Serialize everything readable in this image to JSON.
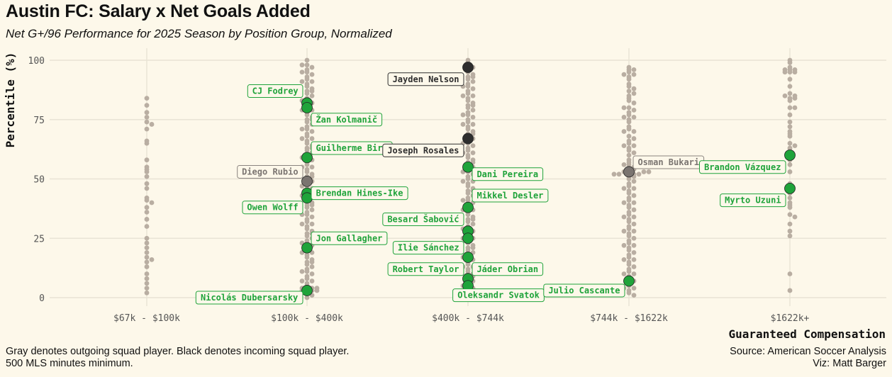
{
  "title": "Austin FC: Salary x Net Goals Added",
  "subtitle": "Net G+/96 Performance for 2025 Season by Position Group, Normalized",
  "footer": {
    "note1": "Gray denotes outgoing squad player. Black denotes incoming squad player.",
    "note2": "500 MLS minutes minimum.",
    "source": "Source: American Soccer Analysis",
    "viz": "Viz: Matt Barger"
  },
  "colors": {
    "background": "#fdf8ea",
    "league": "#b9aea2",
    "current": "#1fa33a",
    "outgoing": "#7a7470",
    "incoming": "#2e2e2e",
    "grid": "#e9e3d5"
  },
  "chart_data": {
    "type": "scatter",
    "title": "Austin FC: Salary x Net Goals Added",
    "subtitle": "Net G+/96 Performance for 2025 Season by Position Group, Normalized",
    "xlabel": "Guaranteed Compensation",
    "ylabel": "Percentile (%)",
    "categories": [
      "$67k - $100k",
      "$100k - $400k",
      "$400k - $744k",
      "$744k - $1622k",
      "$1622k+"
    ],
    "ylim": [
      -3,
      103
    ],
    "yticks": [
      0,
      25,
      50,
      75,
      100
    ],
    "grid": true,
    "background_points": [
      {
        "category": "$67k - $100k",
        "values": [
          84,
          81,
          78,
          76,
          74,
          73,
          71,
          66,
          65,
          58,
          55,
          54,
          53,
          51,
          48,
          46,
          42,
          41,
          40,
          38,
          36,
          33,
          30,
          25,
          23,
          21,
          19,
          17,
          16,
          15,
          13,
          10,
          8,
          6,
          4,
          2
        ]
      },
      {
        "category": "$100k - $400k",
        "values": [
          100,
          98,
          97,
          96,
          95,
          94,
          93,
          92,
          91,
          90,
          89,
          88,
          87,
          86,
          85,
          84,
          83,
          82,
          81,
          80,
          79,
          78,
          77,
          76,
          75,
          74,
          73,
          72,
          71,
          70,
          69,
          68,
          67,
          66,
          65,
          64,
          63,
          62,
          61,
          60,
          59,
          58,
          57,
          56,
          55,
          54,
          53,
          52,
          51,
          50,
          49,
          48,
          47,
          46,
          45,
          44,
          43,
          42,
          41,
          40,
          39,
          38,
          37,
          36,
          35,
          34,
          33,
          32,
          31,
          30,
          29,
          28,
          27,
          26,
          25,
          24,
          23,
          22,
          21,
          20,
          19,
          18,
          17,
          16,
          15,
          14,
          13,
          12,
          11,
          10,
          9,
          8,
          7,
          6,
          5,
          4,
          3,
          2,
          1,
          0,
          98,
          95,
          91,
          87,
          83,
          79,
          75,
          71,
          67,
          63,
          59,
          55,
          51,
          47,
          43,
          39,
          35,
          31,
          27,
          23,
          19,
          15,
          11,
          7,
          4,
          3,
          3,
          4,
          3
        ]
      },
      {
        "category": "$400k - $744k",
        "values": [
          100,
          99,
          97,
          96,
          95,
          94,
          93,
          92,
          91,
          90,
          89,
          88,
          87,
          86,
          85,
          84,
          83,
          82,
          81,
          80,
          79,
          78,
          77,
          76,
          75,
          74,
          73,
          72,
          71,
          70,
          69,
          68,
          67,
          66,
          65,
          64,
          63,
          62,
          61,
          60,
          59,
          58,
          57,
          56,
          55,
          54,
          53,
          52,
          51,
          50,
          49,
          48,
          47,
          46,
          45,
          44,
          43,
          42,
          41,
          40,
          39,
          38,
          37,
          36,
          35,
          34,
          33,
          32,
          31,
          30,
          29,
          28,
          27,
          26,
          25,
          24,
          23,
          22,
          21,
          20,
          19,
          18,
          17,
          16,
          15,
          14,
          13,
          12,
          11,
          10,
          9,
          8,
          7,
          6,
          5,
          4,
          3,
          2,
          1,
          0,
          97,
          93,
          89,
          85,
          81,
          77,
          73,
          69,
          65,
          61,
          57,
          53,
          49,
          45,
          41,
          37,
          33,
          29,
          25,
          21,
          17,
          13,
          9,
          5,
          1
        ]
      },
      {
        "category": "$744k - $1622k",
        "values": [
          97,
          96,
          95,
          94,
          93,
          92,
          90,
          89,
          88,
          87,
          85,
          84,
          83,
          82,
          80,
          79,
          78,
          77,
          76,
          75,
          74,
          72,
          71,
          70,
          68,
          67,
          66,
          65,
          64,
          63,
          62,
          61,
          60,
          58,
          57,
          56,
          55,
          54,
          53,
          52,
          51,
          50,
          49,
          48,
          47,
          46,
          45,
          44,
          43,
          42,
          41,
          40,
          39,
          38,
          37,
          36,
          35,
          34,
          33,
          32,
          31,
          30,
          29,
          28,
          27,
          26,
          25,
          24,
          23,
          22,
          21,
          20,
          19,
          18,
          17,
          16,
          15,
          14,
          13,
          12,
          11,
          10,
          9,
          8,
          7,
          6,
          5,
          4,
          3,
          2,
          1,
          53,
          52,
          52,
          53,
          54,
          52,
          51,
          53,
          96,
          94,
          86,
          80,
          76,
          70,
          64,
          56,
          46,
          40,
          34,
          28,
          22,
          16,
          10,
          4
        ]
      },
      {
        "category": "$1622k+",
        "values": [
          100,
          99,
          97,
          96,
          96,
          96,
          95,
          95,
          95,
          92,
          89,
          86,
          85,
          85,
          84,
          84,
          83,
          80,
          80,
          77,
          74,
          72,
          70,
          69,
          68,
          65,
          64,
          63,
          62,
          58,
          56,
          53,
          48,
          47,
          44,
          42,
          40,
          39,
          38,
          35,
          34,
          31,
          28,
          26,
          10,
          3
        ]
      }
    ],
    "highlighted_players": [
      {
        "name": "CJ Fodrey",
        "category": "$100k - $400k",
        "value": 82,
        "status": "current"
      },
      {
        "name": "Žan Kolmanič",
        "category": "$100k - $400k",
        "value": 80,
        "status": "current"
      },
      {
        "name": "Guilherme Biro",
        "category": "$100k - $400k",
        "value": 59,
        "status": "current"
      },
      {
        "name": "Diego Rubio",
        "category": "$100k - $400k",
        "value": 49,
        "status": "outgoing"
      },
      {
        "name": "Brendan Hines-Ike",
        "category": "$100k - $400k",
        "value": 44,
        "status": "current"
      },
      {
        "name": "Owen Wolff",
        "category": "$100k - $400k",
        "value": 42,
        "status": "current"
      },
      {
        "name": "Jon Gallagher",
        "category": "$100k - $400k",
        "value": 21,
        "status": "current"
      },
      {
        "name": "Nicolás Dubersarsky",
        "category": "$100k - $400k",
        "value": 3,
        "status": "current"
      },
      {
        "name": "Jayden Nelson",
        "category": "$400k - $744k",
        "value": 97,
        "status": "incoming"
      },
      {
        "name": "Joseph Rosales",
        "category": "$400k - $744k",
        "value": 67,
        "status": "incoming"
      },
      {
        "name": "Dani Pereira",
        "category": "$400k - $744k",
        "value": 55,
        "status": "current"
      },
      {
        "name": "Mikkel Desler",
        "category": "$400k - $744k",
        "value": 38,
        "status": "current"
      },
      {
        "name": "Besard Šabović",
        "category": "$400k - $744k",
        "value": 28,
        "status": "current"
      },
      {
        "name": "Ilie Sánchez",
        "category": "$400k - $744k",
        "value": 25,
        "status": "current"
      },
      {
        "name": "Robert Taylor",
        "category": "$400k - $744k",
        "value": 17,
        "status": "current"
      },
      {
        "name": "Jáder Obrian",
        "category": "$400k - $744k",
        "value": 8,
        "status": "current"
      },
      {
        "name": "Oleksandr Svatok",
        "category": "$400k - $744k",
        "value": 5,
        "status": "current"
      },
      {
        "name": "Osman Bukari",
        "category": "$744k - $1622k",
        "value": 53,
        "status": "outgoing"
      },
      {
        "name": "Julio Cascante",
        "category": "$744k - $1622k",
        "value": 7,
        "status": "current"
      },
      {
        "name": "Brandon Vázquez",
        "category": "$1622k+",
        "value": 60,
        "status": "current"
      },
      {
        "name": "Myrto Uzuni",
        "category": "$1622k+",
        "value": 46,
        "status": "current"
      }
    ],
    "labels": [
      {
        "text": "CJ Fodrey",
        "status": "current",
        "side": "left",
        "at": 87
      },
      {
        "text": "Žan Kolmanič",
        "status": "current",
        "side": "right",
        "at": 75
      },
      {
        "text": "Guilherme Biro",
        "status": "current",
        "side": "right",
        "at": 63
      },
      {
        "text": "Diego Rubio",
        "status": "outgoing",
        "side": "left",
        "at": 53
      },
      {
        "text": "Brendan Hines-Ike",
        "status": "current",
        "side": "right",
        "at": 44
      },
      {
        "text": "Owen Wolff",
        "status": "current",
        "side": "left",
        "at": 38
      },
      {
        "text": "Jon Gallagher",
        "status": "current",
        "side": "right",
        "at": 25
      },
      {
        "text": "Nicolás Dubersarsky",
        "status": "current",
        "side": "left",
        "at": 0
      },
      {
        "text": "Jayden Nelson",
        "status": "incoming",
        "side": "left",
        "at": 92
      },
      {
        "text": "Joseph Rosales",
        "status": "incoming",
        "side": "left",
        "at": 62
      },
      {
        "text": "Dani Pereira",
        "status": "current",
        "side": "right",
        "at": 52
      },
      {
        "text": "Mikkel Desler",
        "status": "current",
        "side": "right",
        "at": 43
      },
      {
        "text": "Besard Šabović",
        "status": "current",
        "side": "left",
        "at": 33
      },
      {
        "text": "Ilie Sánchez",
        "status": "current",
        "side": "left",
        "at": 21
      },
      {
        "text": "Robert Taylor",
        "status": "current",
        "side": "left",
        "at": 12
      },
      {
        "text": "Jáder Obrian",
        "status": "current",
        "side": "right",
        "at": 12
      },
      {
        "text": "Oleksandr Svatok",
        "status": "current",
        "side": "center",
        "at": 1
      },
      {
        "text": "Osman Bukari",
        "status": "outgoing",
        "side": "right",
        "at": 57
      },
      {
        "text": "Julio Cascante",
        "status": "current",
        "side": "left",
        "at": 3
      },
      {
        "text": "Brandon Vázquez",
        "status": "current",
        "side": "left",
        "at": 55
      },
      {
        "text": "Myrto Uzuni",
        "status": "current",
        "side": "left",
        "at": 41
      }
    ]
  }
}
